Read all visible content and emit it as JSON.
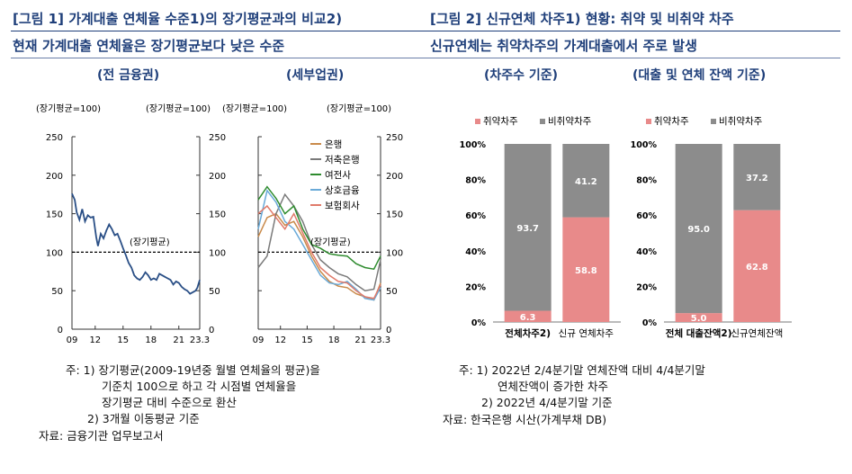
{
  "fig1": {
    "title": "[그림 1] 가계대출 연체율 수준1)의 장기평균과의 비교2)",
    "subtitle": "현재 가계대출 연체율은 장기평균보다 낮은 수준",
    "notes": [
      "주: 1) 장기평균(2009-19년중 월별 연체율의 평균)을",
      "기준치 100으로 하고 각 시점별 연체율을",
      "장기평균 대비 수준으로 환산",
      "2) 3개월 이동평균 기준",
      "자료: 금융기관 업무보고서"
    ]
  },
  "fig2": {
    "title": "[그림 2] 신규연체 차주1) 현황: 취약 및 비취약 차주",
    "subtitle": "신규연체는 취약차주의 가계대출에서 주로 발생",
    "notes": [
      "주: 1) 2022년 2/4분기말 연체잔액 대비 4/4분기말",
      "연체잔액이 증가한 차주",
      "2) 2022년 4/4분기말 기준",
      "자료: 한국은행 시산(가계부채 DB)"
    ]
  },
  "chart_data": [
    {
      "type": "line",
      "title": "(전 금융권)",
      "ylabel_left": "(장기평균=100)",
      "ylabel_right": "(장기평균=100)",
      "ylim": [
        0,
        250
      ],
      "yticks": [
        0,
        50,
        100,
        150,
        200,
        250
      ],
      "xticks": [
        "09",
        "12",
        "15",
        "18",
        "21",
        "23.3"
      ],
      "xlim": [
        2009.5,
        2023.25
      ],
      "reference": {
        "value": 100,
        "label": "(장기평균)"
      },
      "series": [
        {
          "color": "#2a4f86",
          "x": [
            2009.5,
            2009.8,
            2010.0,
            2010.3,
            2010.6,
            2010.9,
            2011.2,
            2011.5,
            2011.8,
            2012.1,
            2012.3,
            2012.6,
            2012.9,
            2013.2,
            2013.5,
            2013.8,
            2014.1,
            2014.4,
            2014.7,
            2015.0,
            2015.3,
            2015.6,
            2015.9,
            2016.2,
            2016.5,
            2016.8,
            2017.1,
            2017.4,
            2017.7,
            2018.0,
            2018.3,
            2018.6,
            2018.9,
            2019.2,
            2019.5,
            2019.8,
            2020.1,
            2020.4,
            2020.7,
            2021.0,
            2021.3,
            2021.6,
            2021.9,
            2022.2,
            2022.5,
            2022.8,
            2023.0,
            2023.25
          ],
          "values": [
            176,
            168,
            152,
            142,
            156,
            140,
            148,
            145,
            146,
            120,
            108,
            124,
            118,
            128,
            136,
            130,
            122,
            124,
            115,
            105,
            96,
            86,
            80,
            70,
            66,
            64,
            68,
            74,
            70,
            64,
            66,
            64,
            72,
            70,
            68,
            66,
            64,
            58,
            62,
            60,
            55,
            52,
            50,
            46,
            48,
            50,
            54,
            64
          ]
        }
      ]
    },
    {
      "type": "line",
      "title": "(세부업권)",
      "ylabel_left": "(장기평균=100)",
      "ylabel_right": "(장기평균=100)",
      "ylim": [
        0,
        250
      ],
      "yticks": [
        0,
        50,
        100,
        150,
        200,
        250
      ],
      "xticks": [
        "09",
        "12",
        "15",
        "18",
        "21",
        "23.3"
      ],
      "xlim": [
        2009.5,
        2023.25
      ],
      "reference": {
        "value": 100,
        "label": "(장기평균)"
      },
      "legend": "top-right",
      "series": [
        {
          "name": "은행",
          "color": "#c98a4a",
          "x": [
            2009.5,
            2010.5,
            2011.5,
            2012.5,
            2013.5,
            2014.5,
            2015.5,
            2016.5,
            2017.5,
            2018.5,
            2019.5,
            2020.5,
            2021.5,
            2022.5,
            2023.25
          ],
          "values": [
            120,
            145,
            150,
            135,
            140,
            120,
            95,
            75,
            62,
            56,
            54,
            46,
            42,
            38,
            60
          ]
        },
        {
          "name": "저축은행",
          "color": "#7a7a7a",
          "x": [
            2009.5,
            2010.5,
            2011.5,
            2012.5,
            2013.5,
            2014.5,
            2015.5,
            2016.5,
            2017.5,
            2018.5,
            2019.5,
            2020.5,
            2021.5,
            2022.5,
            2023.25
          ],
          "values": [
            80,
            95,
            150,
            175,
            160,
            140,
            110,
            90,
            80,
            72,
            68,
            58,
            50,
            52,
            90
          ]
        },
        {
          "name": "여전사",
          "color": "#2e8b2e",
          "x": [
            2009.5,
            2010.5,
            2011.5,
            2012.5,
            2013.5,
            2014.5,
            2015.5,
            2016.5,
            2017.5,
            2018.5,
            2019.5,
            2020.5,
            2021.5,
            2022.5,
            2023.25
          ],
          "values": [
            168,
            185,
            170,
            150,
            160,
            130,
            110,
            105,
            98,
            96,
            95,
            85,
            80,
            78,
            95
          ]
        },
        {
          "name": "상호금융",
          "color": "#6aaad8",
          "x": [
            2009.5,
            2010.5,
            2011.5,
            2012.5,
            2013.5,
            2014.5,
            2015.5,
            2016.5,
            2017.5,
            2018.5,
            2019.5,
            2020.5,
            2021.5,
            2022.5,
            2023.25
          ],
          "values": [
            130,
            180,
            165,
            140,
            130,
            110,
            90,
            70,
            60,
            58,
            62,
            52,
            40,
            38,
            54
          ]
        },
        {
          "name": "보험회사",
          "color": "#e07a6a",
          "x": [
            2009.5,
            2010.5,
            2011.5,
            2012.5,
            2013.5,
            2014.5,
            2015.5,
            2016.5,
            2017.5,
            2018.5,
            2019.5,
            2020.5,
            2021.5,
            2022.5,
            2023.25
          ],
          "values": [
            150,
            160,
            145,
            130,
            150,
            125,
            100,
            80,
            70,
            62,
            60,
            50,
            42,
            40,
            58
          ]
        }
      ]
    },
    {
      "type": "bar",
      "stacked": true,
      "title": "(차주수 기준)",
      "categories": [
        "전체차주2)",
        "신규 연체차주"
      ],
      "ylim": [
        0,
        100
      ],
      "yticks": [
        "0%",
        "20%",
        "40%",
        "60%",
        "80%",
        "100%"
      ],
      "legend": "top",
      "series": [
        {
          "name": "취약차주",
          "color": "#e88a8a",
          "values": [
            6.3,
            58.8
          ]
        },
        {
          "name": "비취약차주",
          "color": "#8c8c8c",
          "values": [
            93.7,
            41.2
          ]
        }
      ]
    },
    {
      "type": "bar",
      "stacked": true,
      "title": "(대출 및 연체 잔액 기준)",
      "categories": [
        "전체 대출잔액2)",
        "신규연체잔액"
      ],
      "ylim": [
        0,
        100
      ],
      "yticks": [
        "0%",
        "20%",
        "40%",
        "60%",
        "80%",
        "100%"
      ],
      "legend": "top",
      "series": [
        {
          "name": "취약차주",
          "color": "#e88a8a",
          "values": [
            5.0,
            62.8
          ]
        },
        {
          "name": "비취약차주",
          "color": "#8c8c8c",
          "values": [
            95.0,
            37.2
          ]
        }
      ]
    }
  ]
}
